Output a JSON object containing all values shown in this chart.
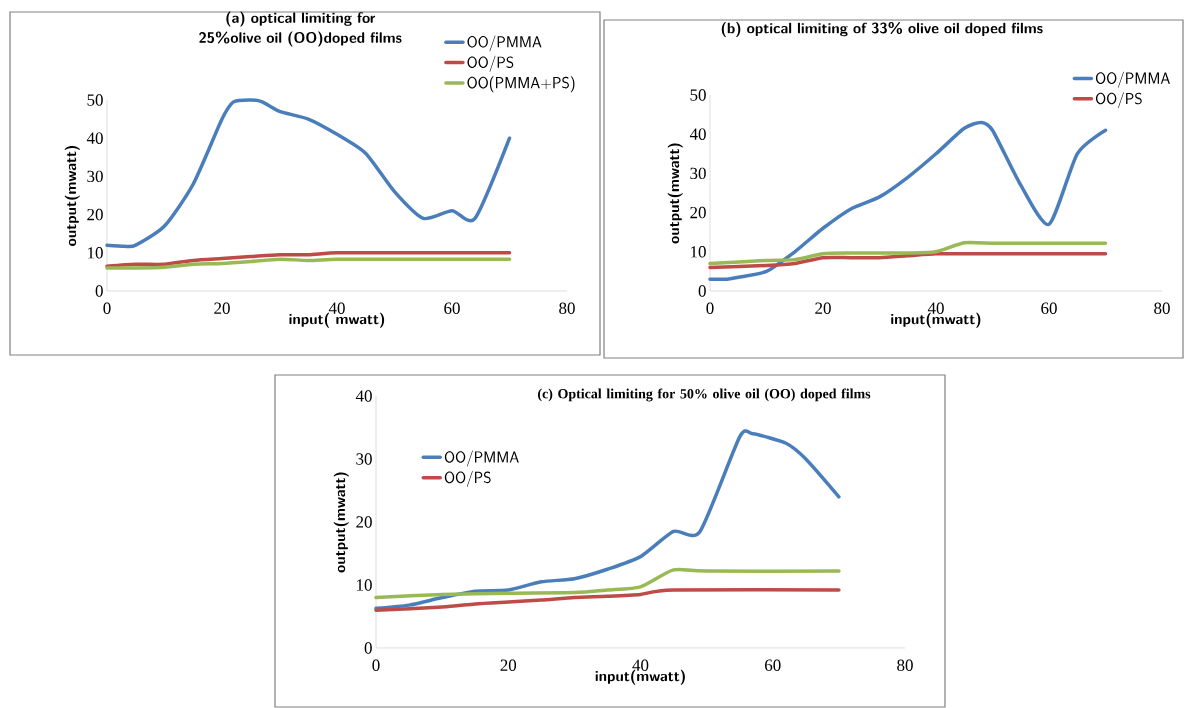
{
  "chart_data": [
    {
      "type": "line",
      "title": "(a) optical limiting for 25%olive oil (OO)doped films",
      "xlabel": "input( mwatt)",
      "ylabel": "output(mwatt)",
      "xlim": [
        0,
        80
      ],
      "xticks": [
        0,
        20,
        40,
        60,
        80
      ],
      "ylim": [
        0,
        50
      ],
      "yticks": [
        0,
        10,
        20,
        30,
        40,
        50
      ],
      "legend": "top right",
      "line_style": "solid",
      "series": [
        {
          "name": "OO/PMMA",
          "color": "#4a7ebb",
          "x": [
            0,
            3,
            5,
            10,
            15,
            20,
            22,
            25,
            27,
            30,
            35,
            40,
            45,
            50,
            55,
            60,
            64,
            70
          ],
          "values": [
            12,
            11.7,
            12,
            17,
            28,
            45,
            49.5,
            50,
            49.5,
            47,
            45,
            41,
            36,
            26,
            19,
            21,
            19,
            40
          ]
        },
        {
          "name": "OO/PS",
          "color": "#be4b48",
          "x": [
            0,
            5,
            10,
            15,
            20,
            25,
            30,
            35,
            40,
            50,
            60,
            70
          ],
          "values": [
            6.5,
            7,
            7,
            8,
            8.5,
            9,
            9.5,
            9.5,
            10,
            10,
            10,
            10
          ]
        },
        {
          "name": "OO(PMMA+PS)",
          "color": "#98b954",
          "x": [
            0,
            5,
            10,
            15,
            20,
            25,
            30,
            35,
            40,
            50,
            60,
            70
          ],
          "values": [
            6,
            6,
            6.2,
            7,
            7.2,
            7.7,
            8.3,
            8,
            8.3,
            8.3,
            8.3,
            8.3
          ]
        }
      ]
    },
    {
      "type": "line",
      "title": "(b) optical limiting of 33% olive oil doped films",
      "xlabel": "input(mwatt)",
      "ylabel": "output(mwatt)",
      "xlim": [
        0,
        80
      ],
      "xticks": [
        0,
        20,
        40,
        60,
        80
      ],
      "ylim": [
        0,
        50
      ],
      "yticks": [
        0,
        10,
        20,
        30,
        40,
        50
      ],
      "legend": "top right",
      "line_style": "solid",
      "series": [
        {
          "name": "OO/PMMA",
          "color": "#4a7ebb",
          "x": [
            0,
            3,
            5,
            10,
            15,
            20,
            25,
            30,
            35,
            40,
            45,
            48,
            50,
            55,
            60,
            65,
            70
          ],
          "values": [
            3,
            3,
            3.5,
            5,
            10,
            16,
            21,
            24,
            29,
            35,
            41.5,
            43,
            41,
            27,
            17,
            35,
            41
          ]
        },
        {
          "name": "OO/PS",
          "color": "#be4b48",
          "x": [
            0,
            10,
            15,
            20,
            25,
            30,
            35,
            40,
            45,
            70
          ],
          "values": [
            6,
            6.5,
            7,
            8.5,
            8.5,
            8.5,
            9,
            9.5,
            9.5,
            9.5
          ]
        },
        {
          "color": "#98b954",
          "x": [
            0,
            10,
            15,
            20,
            25,
            30,
            35,
            40,
            45,
            50,
            70
          ],
          "values": [
            7,
            7.8,
            8,
            9.5,
            9.7,
            9.7,
            9.7,
            10,
            12.3,
            12.2,
            12.2
          ]
        }
      ]
    },
    {
      "type": "line",
      "title": "(c) Optical limiting for 50% olive oil (OO) doped films",
      "xlabel": "input(mwatt)",
      "ylabel": "output(mwatt)",
      "xlim": [
        0,
        80
      ],
      "xticks": [
        0,
        20,
        40,
        60,
        80
      ],
      "ylim": [
        0,
        40
      ],
      "yticks": [
        0,
        10,
        20,
        30,
        40
      ],
      "legend": "top left",
      "line_style": "solid",
      "series": [
        {
          "name": "OO/PMMA",
          "color": "#4a7ebb",
          "x": [
            0,
            5,
            10,
            15,
            20,
            25,
            30,
            35,
            40,
            45,
            49,
            55,
            57,
            62,
            65,
            70
          ],
          "values": [
            6.3,
            6.8,
            8,
            9,
            9.2,
            10.5,
            11,
            12.5,
            14.5,
            18.5,
            18.5,
            33.5,
            34,
            32.5,
            30,
            24
          ]
        },
        {
          "name": "OO/PS",
          "color": "#be4b48",
          "x": [
            0,
            10,
            15,
            20,
            25,
            30,
            35,
            40,
            45,
            70
          ],
          "values": [
            6,
            6.5,
            7,
            7.3,
            7.6,
            8,
            8.2,
            8.5,
            9.2,
            9.2
          ]
        },
        {
          "color": "#98b954",
          "x": [
            0,
            10,
            20,
            30,
            35,
            40,
            45,
            50,
            70
          ],
          "values": [
            8,
            8.5,
            8.7,
            8.8,
            9.2,
            9.7,
            12.4,
            12.2,
            12.2
          ]
        }
      ]
    }
  ]
}
